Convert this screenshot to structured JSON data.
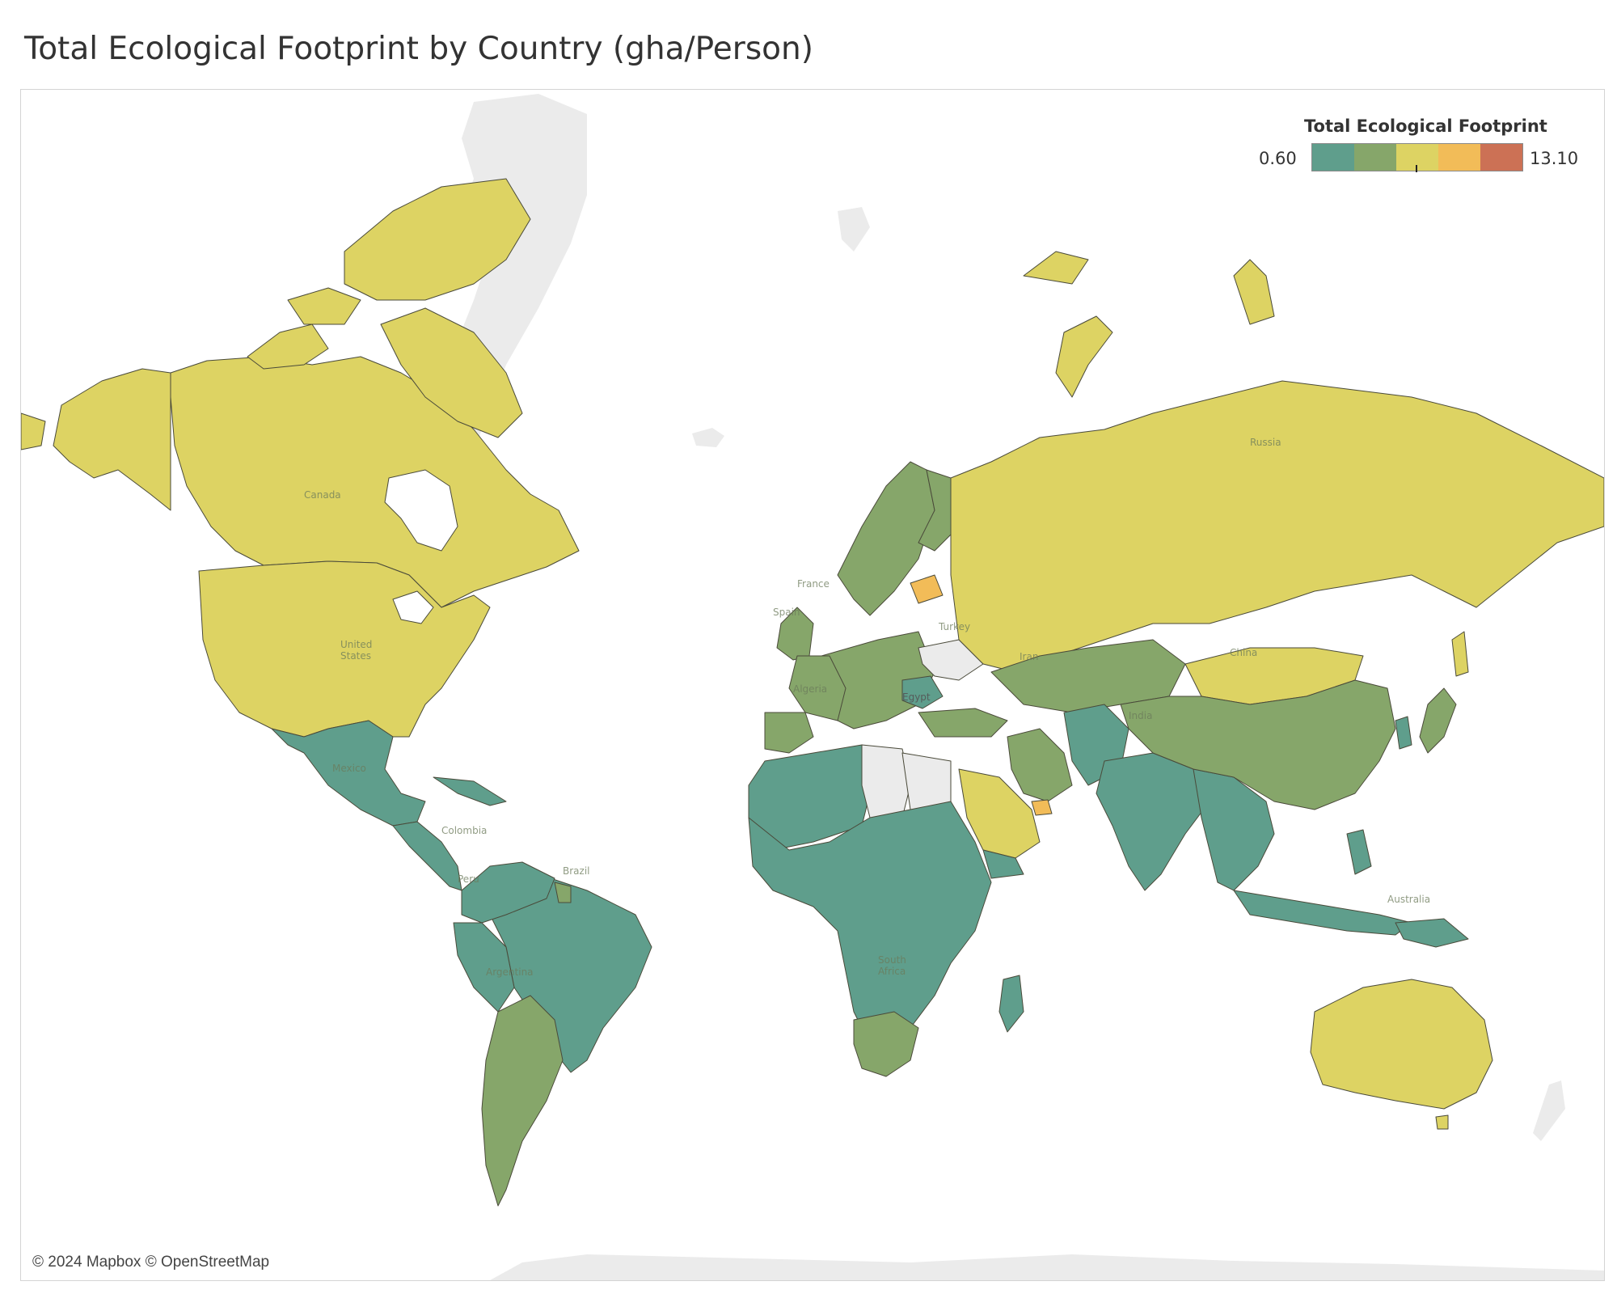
{
  "title": "Total Ecological Footprint by Country (gha/Person)",
  "legend": {
    "title": "Total Ecological Footprint",
    "min": "0.60",
    "max": "13.10",
    "colors": [
      "#5f9e8c",
      "#86a66a",
      "#ddd363",
      "#f2bc58",
      "#cc7155"
    ]
  },
  "attribution": "© 2024 Mapbox © OpenStreetMap",
  "colors": {
    "nodata": "#ebebeb",
    "ocean": "#ffffff",
    "border": "#4a4a3a"
  },
  "country_labels": {
    "canada": "Canada",
    "united_states": "United States",
    "mexico": "Mexico",
    "colombia": "Colombia",
    "brazil": "Brazil",
    "peru": "Peru",
    "argentina": "Argentina",
    "algeria": "Algeria",
    "egypt": "Egypt",
    "south_africa": "South Africa",
    "france": "France",
    "spain": "Spain",
    "turkey": "Turkey",
    "iran": "Iran",
    "india": "India",
    "china": "China",
    "russia": "Russia",
    "australia": "Australia"
  }
}
